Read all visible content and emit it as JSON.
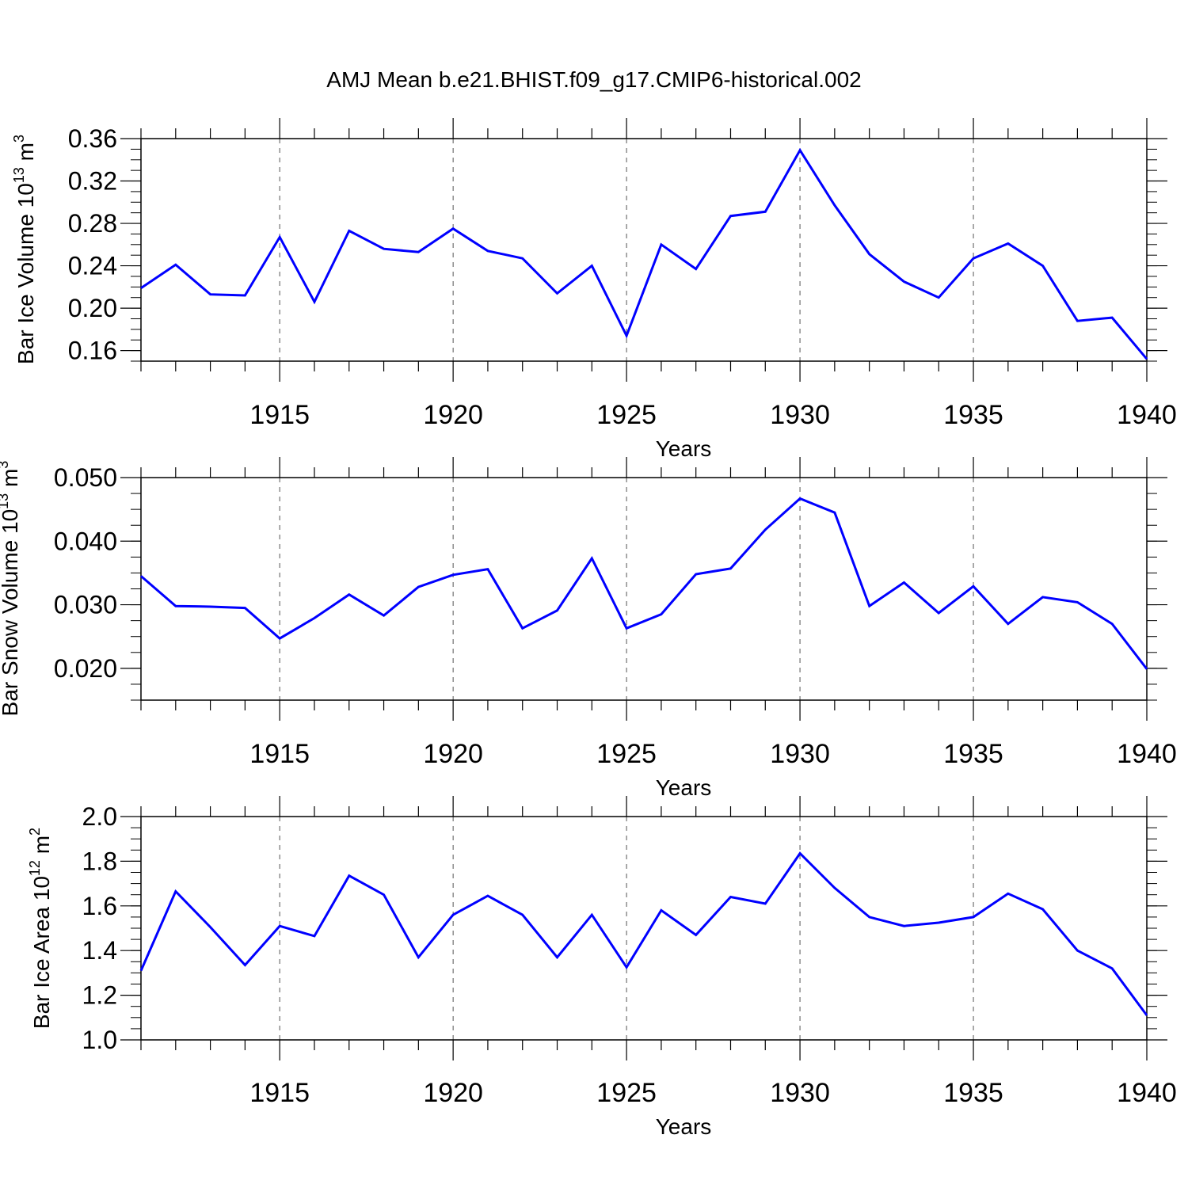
{
  "chart_data": {
    "type": "line",
    "title": "AMJ Mean b.e21.BHIST.f09_g17.CMIP6-historical.002",
    "line_color": "#0000ff",
    "axis_color": "#000000",
    "years": [
      1911,
      1912,
      1913,
      1914,
      1915,
      1916,
      1917,
      1918,
      1919,
      1920,
      1921,
      1922,
      1923,
      1924,
      1925,
      1926,
      1927,
      1928,
      1929,
      1930,
      1931,
      1932,
      1933,
      1934,
      1935,
      1936,
      1937,
      1938,
      1939,
      1940
    ],
    "xlim": [
      1911,
      1940
    ],
    "xticks": [
      1915,
      1920,
      1925,
      1930,
      1935,
      1940
    ],
    "panels": [
      {
        "name": "ice-volume",
        "ylabel": {
          "text": "Bar Ice Volume 10",
          "exp1": "13",
          "mid": " m",
          "exp2": "3"
        },
        "xlabel": "Years",
        "ylim": [
          0.15,
          0.36
        ],
        "yticks": [
          "0.16",
          "0.20",
          "0.24",
          "0.28",
          "0.32",
          "0.36"
        ],
        "ytick_values": [
          0.16,
          0.2,
          0.24,
          0.28,
          0.32,
          0.36
        ],
        "yminor_step": 0.01,
        "values": [
          0.219,
          0.241,
          0.213,
          0.212,
          0.267,
          0.206,
          0.273,
          0.256,
          0.253,
          0.275,
          0.254,
          0.247,
          0.214,
          0.24,
          0.174,
          0.26,
          0.237,
          0.287,
          0.291,
          0.349,
          0.297,
          0.251,
          0.225,
          0.21,
          0.247,
          0.261,
          0.24,
          0.188,
          0.191,
          0.152
        ]
      },
      {
        "name": "snow-volume",
        "ylabel": {
          "text": "Bar Snow Volume 10",
          "exp1": "13",
          "mid": " m",
          "exp2": "3"
        },
        "xlabel": "Years",
        "ylim": [
          0.015,
          0.05
        ],
        "yticks": [
          "0.020",
          "0.030",
          "0.040",
          "0.050"
        ],
        "ytick_values": [
          0.02,
          0.03,
          0.04,
          0.05
        ],
        "yminor_step": 0.0025,
        "values": [
          0.0345,
          0.0298,
          0.0297,
          0.0295,
          0.0247,
          0.0279,
          0.0316,
          0.0283,
          0.0328,
          0.0347,
          0.0356,
          0.0263,
          0.0291,
          0.0373,
          0.0263,
          0.0285,
          0.0348,
          0.0357,
          0.0418,
          0.0467,
          0.0445,
          0.0298,
          0.0335,
          0.0287,
          0.0329,
          0.027,
          0.0312,
          0.0304,
          0.027,
          0.0199
        ]
      },
      {
        "name": "ice-area",
        "ylabel": {
          "text": "Bar Ice Area 10",
          "exp1": "12",
          "mid": " m",
          "exp2": "2"
        },
        "xlabel": "Years",
        "ylim": [
          1.0,
          2.0
        ],
        "yticks": [
          "1.0",
          "1.2",
          "1.4",
          "1.6",
          "1.8",
          "2.0"
        ],
        "ytick_values": [
          1.0,
          1.2,
          1.4,
          1.6,
          1.8,
          2.0
        ],
        "yminor_step": 0.05,
        "values": [
          1.31,
          1.665,
          1.505,
          1.335,
          1.51,
          1.465,
          1.735,
          1.65,
          1.37,
          1.56,
          1.645,
          1.56,
          1.37,
          1.56,
          1.325,
          1.58,
          1.47,
          1.64,
          1.61,
          1.835,
          1.68,
          1.55,
          1.51,
          1.525,
          1.55,
          1.655,
          1.585,
          1.4,
          1.32,
          1.11
        ]
      }
    ]
  }
}
